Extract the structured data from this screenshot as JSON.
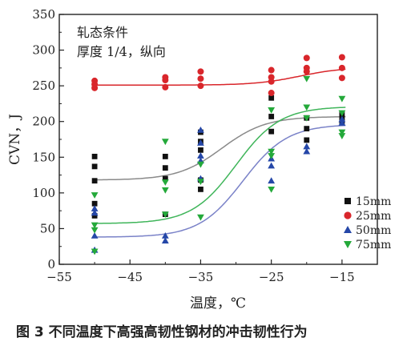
{
  "caption": "图 3   不同温度下高强高韧性钢材的冲击韧性行为",
  "chart_data": {
    "type": "scatter",
    "xlabel": "温度，℃",
    "ylabel": "CVN，J",
    "xlim": [
      -55,
      -10
    ],
    "ylim": [
      0,
      350
    ],
    "xticks": [
      -55,
      -45,
      -35,
      -25,
      -15
    ],
    "xtick_labels": [
      "−55",
      "−45",
      "−35",
      "−25",
      "−15"
    ],
    "yticks": [
      0,
      50,
      100,
      150,
      200,
      250,
      300,
      350
    ],
    "ytick_labels": [
      "0",
      "50",
      "100",
      "150",
      "200",
      "250",
      "300",
      "350"
    ],
    "annotation": [
      "轧态条件",
      "厚度 1/4，纵向"
    ],
    "legend_position": "lower-right",
    "series": [
      {
        "name": "15mm",
        "marker": "square",
        "color": "#111111",
        "curve_color": "#8a8a8a",
        "points": [
          [
            -50,
            151
          ],
          [
            -50,
            137
          ],
          [
            -50,
            117
          ],
          [
            -50,
            85
          ],
          [
            -50,
            68
          ],
          [
            -40,
            151
          ],
          [
            -40,
            135
          ],
          [
            -40,
            120
          ],
          [
            -40,
            70
          ],
          [
            -35,
            185
          ],
          [
            -35,
            172
          ],
          [
            -35,
            160
          ],
          [
            -35,
            118
          ],
          [
            -35,
            105
          ],
          [
            -25,
            233
          ],
          [
            -25,
            207
          ],
          [
            -25,
            186
          ],
          [
            -20,
            205
          ],
          [
            -20,
            190
          ],
          [
            -20,
            174
          ],
          [
            -15,
            210
          ],
          [
            -15,
            205
          ],
          [
            -15,
            200
          ]
        ],
        "curve": {
          "lower": 118,
          "upper": 207,
          "t0": -32
        }
      },
      {
        "name": "25mm",
        "marker": "circle",
        "color": "#d9262b",
        "curve_color": "#d9262b",
        "points": [
          [
            -50,
            257
          ],
          [
            -50,
            252
          ],
          [
            -50,
            247
          ],
          [
            -40,
            262
          ],
          [
            -40,
            258
          ],
          [
            -40,
            248
          ],
          [
            -35,
            270
          ],
          [
            -35,
            260
          ],
          [
            -35,
            250
          ],
          [
            -25,
            272
          ],
          [
            -25,
            262
          ],
          [
            -25,
            256
          ],
          [
            -25,
            240
          ],
          [
            -20,
            289
          ],
          [
            -20,
            275
          ],
          [
            -20,
            270
          ],
          [
            -15,
            290
          ],
          [
            -15,
            275
          ],
          [
            -15,
            261
          ]
        ],
        "curve": {
          "lower": 251,
          "upper": 276,
          "t0": -21
        }
      },
      {
        "name": "50mm",
        "marker": "triangle-up",
        "color": "#2547a8",
        "curve_color": "#7a82c8",
        "points": [
          [
            -50,
            78
          ],
          [
            -50,
            72
          ],
          [
            -50,
            40
          ],
          [
            -50,
            20
          ],
          [
            -40,
            40
          ],
          [
            -40,
            33
          ],
          [
            -35,
            188
          ],
          [
            -35,
            170
          ],
          [
            -35,
            152
          ],
          [
            -35,
            145
          ],
          [
            -35,
            120
          ],
          [
            -25,
            148
          ],
          [
            -25,
            138
          ],
          [
            -25,
            117
          ],
          [
            -20,
            165
          ],
          [
            -20,
            158
          ],
          [
            -15,
            203
          ],
          [
            -15,
            198
          ]
        ],
        "curve": {
          "lower": 38,
          "upper": 196,
          "t0": -29
        }
      },
      {
        "name": "75mm",
        "marker": "triangle-down",
        "color": "#24a93a",
        "curve_color": "#3fb55a",
        "points": [
          [
            -50,
            97
          ],
          [
            -50,
            55
          ],
          [
            -50,
            48
          ],
          [
            -50,
            18
          ],
          [
            -40,
            172
          ],
          [
            -40,
            115
          ],
          [
            -40,
            104
          ],
          [
            -40,
            70
          ],
          [
            -35,
            140
          ],
          [
            -35,
            116
          ],
          [
            -35,
            66
          ],
          [
            -25,
            216
          ],
          [
            -25,
            158
          ],
          [
            -25,
            152
          ],
          [
            -25,
            105
          ],
          [
            -20,
            260
          ],
          [
            -20,
            220
          ],
          [
            -20,
            205
          ],
          [
            -15,
            232
          ],
          [
            -15,
            212
          ],
          [
            -15,
            185
          ],
          [
            -15,
            180
          ]
        ],
        "curve": {
          "lower": 57,
          "upper": 221,
          "t0": -30
        }
      }
    ]
  }
}
